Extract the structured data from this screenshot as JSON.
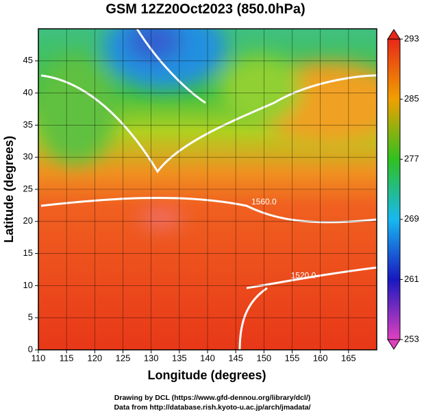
{
  "chart_data": {
    "type": "map",
    "title": "GSM 12Z20Oct2023 (850.0hPa)",
    "xlabel": "Longitude (degrees)",
    "ylabel": "Latitude  (degrees)",
    "xlim": [
      110,
      170
    ],
    "ylim": [
      0,
      50
    ],
    "xticks": [
      110,
      115,
      120,
      125,
      130,
      135,
      140,
      145,
      150,
      155,
      160,
      165
    ],
    "yticks": [
      0,
      5,
      10,
      15,
      20,
      25,
      30,
      35,
      40,
      45
    ],
    "grid": true,
    "colorbar": {
      "lim": [
        253,
        293
      ],
      "ticks": [
        253,
        261,
        269,
        277,
        285,
        293
      ],
      "colors": [
        "#e040c0",
        "#1818c0",
        "#18b8f0",
        "#30c020",
        "#f0a000",
        "#e82818"
      ]
    },
    "contour_labels": [
      {
        "text": "1560.0",
        "x": 150,
        "y": 23
      },
      {
        "text": "1520.0",
        "x": 157,
        "y": 11.5
      }
    ],
    "credits": [
      "Drawing by DCL (https://www.gfd-dennou.org/library/dcl/)",
      "Data from http://database.rish.kyoto-u.ac.jp/arch/jmadata/"
    ]
  }
}
